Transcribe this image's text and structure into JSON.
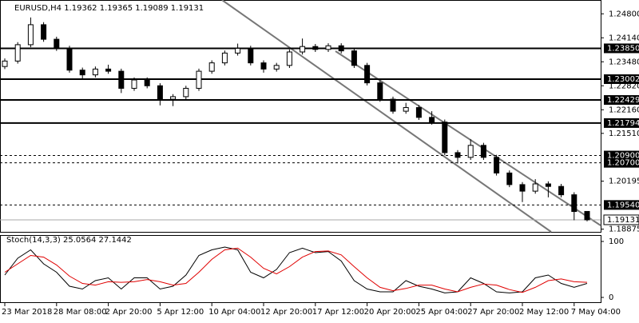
{
  "chart_data": [
    {
      "type": "candlestick",
      "title": "EURUSD,H4  1.19362 1.19365 1.19089 1.19131",
      "categories": [
        "23 Mar 2018",
        null,
        null,
        null,
        "28 Mar 08:00",
        null,
        null,
        null,
        "2 Apr 20:00",
        null,
        null,
        null,
        "5 Apr 12:00",
        null,
        null,
        null,
        "10 Apr 04:00",
        null,
        null,
        null,
        "12 Apr 20:00",
        null,
        null,
        null,
        "17 Apr 12:00",
        null,
        null,
        null,
        "20 Apr 20:00",
        null,
        null,
        null,
        "25 Apr 04:00",
        null,
        null,
        null,
        "27 Apr 20:00",
        null,
        null,
        null,
        "2 May 12:00",
        null,
        null,
        null,
        "7 May 04:00",
        null
      ],
      "open": [
        1.2335,
        1.235,
        1.2395,
        1.245,
        1.241,
        1.2385,
        1.2325,
        1.2312,
        1.2328,
        1.2322,
        1.2275,
        1.2298,
        1.2282,
        1.2245,
        1.2252,
        1.2275,
        1.2322,
        1.2345,
        1.2372,
        1.2385,
        1.2345,
        1.2328,
        1.2338,
        1.2375,
        1.239,
        1.2382,
        1.2392,
        1.2378,
        1.2338,
        1.229,
        1.2245,
        1.2212,
        1.2222,
        1.2195,
        1.2182,
        1.2098,
        1.2085,
        1.2118,
        1.2085,
        1.2042,
        1.201,
        1.1992,
        1.2012,
        1.2005,
        1.1982,
        1.19362
      ],
      "high": [
        1.2357,
        1.2402,
        1.247,
        1.2457,
        1.2417,
        1.2392,
        1.2332,
        1.2335,
        1.234,
        1.2329,
        1.2305,
        1.2305,
        1.2289,
        1.2259,
        1.2282,
        1.2329,
        1.2352,
        1.2379,
        1.2398,
        1.2392,
        1.2352,
        1.2345,
        1.2382,
        1.2412,
        1.2397,
        1.2399,
        1.2399,
        1.2385,
        1.2345,
        1.2297,
        1.2252,
        1.2235,
        1.2229,
        1.2212,
        1.2189,
        1.2105,
        1.2135,
        1.2125,
        1.2092,
        1.2049,
        1.2017,
        1.2025,
        1.2019,
        1.2012,
        1.1989,
        1.19365
      ],
      "low": [
        1.2328,
        1.2343,
        1.2388,
        1.2403,
        1.2378,
        1.2318,
        1.2298,
        1.2305,
        1.2315,
        1.2262,
        1.2268,
        1.2275,
        1.2228,
        1.2226,
        1.2245,
        1.2268,
        1.2315,
        1.2338,
        1.2365,
        1.2338,
        1.2318,
        1.2321,
        1.2331,
        1.2368,
        1.2375,
        1.2375,
        1.2371,
        1.2331,
        1.2283,
        1.2238,
        1.2205,
        1.2205,
        1.2188,
        1.2175,
        1.2091,
        1.2068,
        1.2078,
        1.2078,
        1.2035,
        1.2003,
        1.1962,
        1.1985,
        1.1975,
        1.1975,
        1.1912,
        1.19089
      ],
      "close": [
        1.235,
        1.2395,
        1.245,
        1.241,
        1.2385,
        1.2325,
        1.2312,
        1.2328,
        1.2322,
        1.2275,
        1.2298,
        1.2282,
        1.2245,
        1.2252,
        1.2275,
        1.2322,
        1.2345,
        1.2372,
        1.2385,
        1.2345,
        1.2328,
        1.2338,
        1.2375,
        1.239,
        1.2382,
        1.2392,
        1.2378,
        1.2338,
        1.229,
        1.2245,
        1.2212,
        1.2222,
        1.2195,
        1.2182,
        1.2098,
        1.2085,
        1.2118,
        1.2085,
        1.2042,
        1.201,
        1.1992,
        1.2012,
        1.2005,
        1.1982,
        1.1936,
        1.19131
      ],
      "ylim": [
        1.188,
        1.2518
      ],
      "yticks": [
        {
          "value": 1.248,
          "label": "1.24800"
        },
        {
          "value": 1.2414,
          "label": "1.24140"
        },
        {
          "value": 1.2348,
          "label": "1.23480"
        },
        {
          "value": 1.2282,
          "label": "1.22820"
        },
        {
          "value": 1.2216,
          "label": "1.22160"
        },
        {
          "value": 1.2151,
          "label": "1.21510"
        },
        {
          "value": 1.20195,
          "label": "1.20195"
        },
        {
          "value": 1.18875,
          "label": "1.18875"
        }
      ],
      "levels": [
        {
          "value": 1.2385,
          "label": "1.23850",
          "style": "solid"
        },
        {
          "value": 1.23002,
          "label": "1.23002",
          "style": "solid"
        },
        {
          "value": 1.22429,
          "label": "1.22429",
          "style": "solid"
        },
        {
          "value": 1.21794,
          "label": "1.21794",
          "style": "solid"
        },
        {
          "value": 1.209,
          "label": "1.20900",
          "style": "dashed"
        },
        {
          "value": 1.207,
          "label": "1.20700",
          "style": "dashed"
        },
        {
          "value": 1.1954,
          "label": "1.19540",
          "style": "dashed"
        }
      ],
      "last_price": {
        "value": 1.19131,
        "label": "1.19131"
      }
    },
    {
      "type": "line",
      "title": "Stoch(14,3,3) 25.0564 27.1442",
      "series": [
        {
          "color": "#000000",
          "values": [
            40,
            70,
            85,
            60,
            45,
            20,
            15,
            30,
            35,
            15,
            35,
            35,
            15,
            20,
            40,
            75,
            85,
            90,
            85,
            45,
            35,
            50,
            80,
            88,
            80,
            82,
            65,
            30,
            15,
            10,
            10,
            30,
            20,
            15,
            8,
            10,
            35,
            25,
            10,
            8,
            10,
            35,
            40,
            25,
            18,
            25
          ]
        },
        {
          "color": "#e00000",
          "values": [
            45,
            60,
            75,
            72,
            58,
            38,
            25,
            22,
            28,
            27,
            28,
            32,
            28,
            22,
            25,
            45,
            68,
            85,
            88,
            72,
            52,
            42,
            55,
            72,
            82,
            83,
            76,
            55,
            35,
            18,
            12,
            16,
            22,
            22,
            15,
            10,
            18,
            24,
            22,
            14,
            9,
            18,
            30,
            33,
            28,
            27
          ]
        }
      ],
      "ylim": [
        0,
        100
      ],
      "yticks": [
        100,
        0
      ]
    }
  ]
}
